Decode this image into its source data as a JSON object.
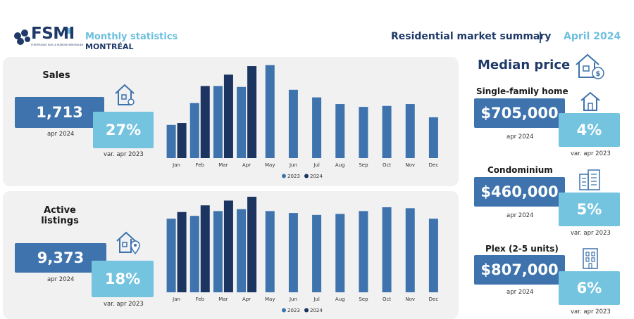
{
  "header": {
    "logo_text": "FSMI",
    "logo_subtext": "FORTERESSE SUR LE MARCHE IMMOBILIER",
    "title": "Monthly statistics",
    "city": "MONTRÉAL",
    "summary": "Residential market summary",
    "separator": "|",
    "month": "April 2024"
  },
  "colors": {
    "series_2023": "#3e73ad",
    "series_2024": "#1b3560",
    "kpi_dark": "#3e73ad",
    "kpi_light": "#74c4e0",
    "accent": "#6cbfde",
    "navy": "#1f3a68"
  },
  "sales": {
    "title": "Sales",
    "value": "1,713",
    "value_caption": "apr 2024",
    "variation": "27%",
    "variation_caption": "var. apr 2023",
    "icon": "house-key-icon"
  },
  "listings": {
    "title_line1": "Active",
    "title_line2": "listings",
    "value": "9,373",
    "value_caption": "apr 2024",
    "variation": "18%",
    "variation_caption": "var. apr 2023",
    "icon": "house-pin-icon"
  },
  "median": {
    "title": "Median price",
    "icon": "house-dollar-icon",
    "items": [
      {
        "type": "Single-family home",
        "price": "$705,000",
        "price_caption": "apr 2024",
        "variation": "4%",
        "variation_caption": "var. apr 2023",
        "icon": "house-icon"
      },
      {
        "type": "Condominium",
        "price": "$460,000",
        "price_caption": "apr 2024",
        "variation": "5%",
        "variation_caption": "var. apr 2023",
        "icon": "condo-building-icon"
      },
      {
        "type": "Plex (2-5 units)",
        "price": "$807,000",
        "price_caption": "apr 2024",
        "variation": "6%",
        "variation_caption": "var. apr 2023",
        "icon": "plex-building-icon"
      }
    ]
  },
  "chart_data": [
    {
      "type": "bar",
      "categories": [
        "Jan",
        "Feb",
        "Mar",
        "Apr",
        "May",
        "Jun",
        "Jul",
        "Aug",
        "Sep",
        "Oct",
        "Nov",
        "Dec"
      ],
      "series": [
        {
          "name": "2023",
          "values": [
            35,
            58,
            76,
            75,
            98,
            72,
            64,
            57,
            54,
            55,
            57,
            43
          ]
        },
        {
          "name": "2024",
          "values": [
            37,
            76,
            88,
            97,
            null,
            null,
            null,
            null,
            null,
            null,
            null,
            null
          ]
        }
      ],
      "ylim": [
        0,
        100
      ],
      "legend": "bottom-center",
      "grid": false
    },
    {
      "type": "bar",
      "categories": [
        "Jan",
        "Feb",
        "Mar",
        "Apr",
        "May",
        "Jun",
        "Jul",
        "Aug",
        "Sep",
        "Oct",
        "Nov",
        "Dec"
      ],
      "series": [
        {
          "name": "2023",
          "values": [
            77,
            80,
            85,
            87,
            85,
            83,
            81,
            82,
            85,
            89,
            88,
            77
          ]
        },
        {
          "name": "2024",
          "values": [
            84,
            91,
            96,
            100,
            null,
            null,
            null,
            null,
            null,
            null,
            null,
            null
          ]
        }
      ],
      "ylim": [
        0,
        100
      ],
      "legend": "bottom-center",
      "grid": false
    }
  ]
}
